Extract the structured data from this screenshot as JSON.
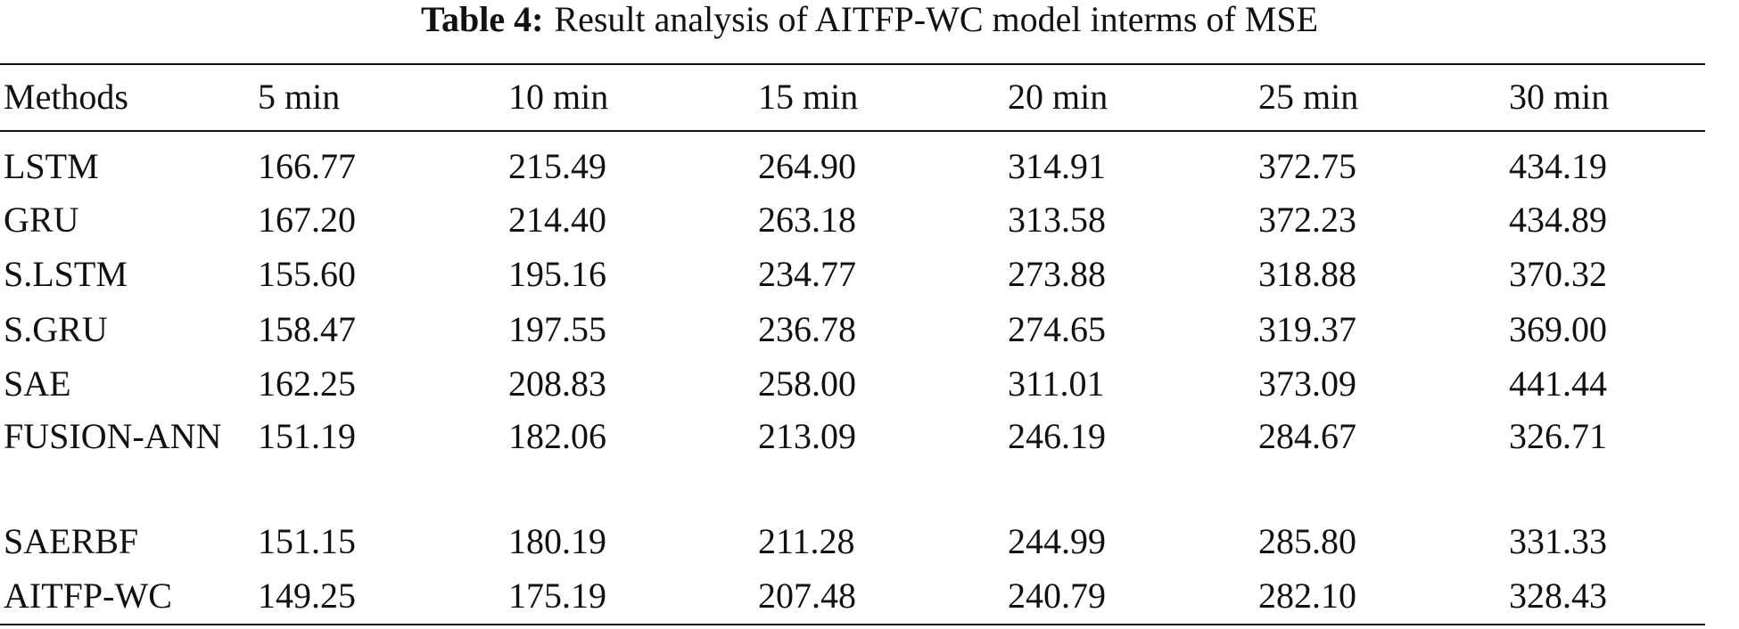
{
  "table": {
    "caption_label": "Table 4:",
    "caption": "Result analysis of AITFP-WC model interms of MSE",
    "header": [
      "Methods",
      "5 min",
      "10 min",
      "15 min",
      "20 min",
      "25 min",
      "30 min"
    ],
    "rows": [
      [
        "LSTM",
        "166.77",
        "215.49",
        "264.90",
        "314.91",
        "372.75",
        "434.19"
      ],
      [
        "GRU",
        "167.20",
        "214.40",
        "263.18",
        "313.58",
        "372.23",
        "434.89"
      ],
      [
        "S.LSTM",
        "155.60",
        "195.16",
        "234.77",
        "273.88",
        "318.88",
        "370.32"
      ],
      [
        "S.GRU",
        "158.47",
        "197.55",
        "236.78",
        "274.65",
        "319.37",
        "369.00"
      ],
      [
        "SAE",
        "162.25",
        "208.83",
        "258.00",
        "311.01",
        "373.09",
        "441.44"
      ],
      [
        "FUSION-ANN",
        "151.19",
        "182.06",
        "213.09",
        "246.19",
        "284.67",
        "326.71"
      ],
      [
        "SAERBF",
        "151.15",
        "180.19",
        "211.28",
        "244.99",
        "285.80",
        "331.33"
      ],
      [
        "AITFP-WC",
        "149.25",
        "175.19",
        "207.48",
        "240.79",
        "282.10",
        "328.43"
      ]
    ]
  }
}
